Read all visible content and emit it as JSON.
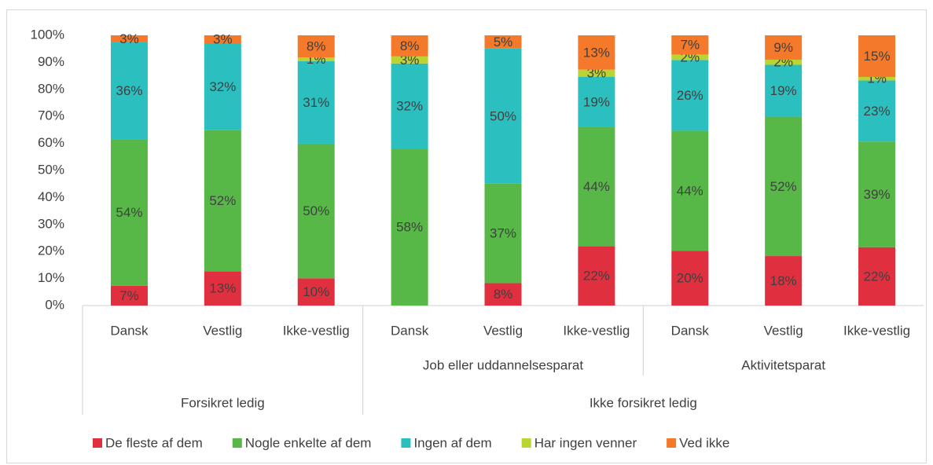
{
  "chart_data": {
    "type": "stacked_bar",
    "categories": [
      "Dansk",
      "Vestlig",
      "Ikke-vestlig",
      "Dansk",
      "Vestlig",
      "Ikke-vestlig",
      "Dansk",
      "Vestlig",
      "Ikke-vestlig"
    ],
    "subgroups": [
      null,
      "Job eller uddannelsesparat",
      "Aktivitetsparat"
    ],
    "groups": [
      "Forsikret ledig",
      "Ikke forsikret ledig"
    ],
    "series": [
      {
        "name": "De fleste af dem",
        "color": "#e0303f",
        "values": [
          7.3,
          12.7,
          10.1,
          0,
          8.3,
          22,
          20.3,
          18.3,
          21.6
        ],
        "value_labels": [
          "7%",
          "13%",
          "10%",
          null,
          "8%",
          "22%",
          "20%",
          "18%",
          "22%"
        ]
      },
      {
        "name": "Nogle enkelte af dem",
        "color": "#57b847",
        "values": [
          54.2,
          52.2,
          49.8,
          58,
          36.8,
          44,
          44.4,
          51.6,
          39.1
        ],
        "value_labels": [
          "54%",
          "52%",
          "50%",
          "58%",
          "37%",
          "44%",
          "44%",
          "52%",
          "39%"
        ]
      },
      {
        "name": "Ingen af dem",
        "color": "#2bbfbf",
        "values": [
          35.9,
          32.2,
          30.6,
          31.6,
          50,
          18.7,
          26.2,
          19.2,
          22.6
        ],
        "value_labels": [
          "36%",
          "32%",
          "31%",
          "32%",
          "50%",
          "19%",
          "26%",
          "19%",
          "23%"
        ]
      },
      {
        "name": "Har ingen venner",
        "color": "#bcd432",
        "values": [
          0,
          0,
          1.3,
          2.6,
          0,
          2.6,
          2.0,
          1.9,
          1.3
        ],
        "value_labels": [
          null,
          null,
          "1%",
          "3%",
          null,
          "3%",
          "2%",
          "2%",
          "1%"
        ]
      },
      {
        "name": "Ved ikke",
        "color": "#f4792a",
        "values": [
          2.6,
          2.9,
          8.2,
          7.8,
          4.9,
          12.7,
          7.1,
          9.0,
          15.4
        ],
        "value_labels": [
          "3%",
          "3%",
          "8%",
          "8%",
          "5%",
          "13%",
          "7%",
          "9%",
          "15%"
        ]
      }
    ],
    "ylim": [
      0,
      100
    ],
    "yticks": [
      {
        "value": 0,
        "label": "0%"
      },
      {
        "value": 10,
        "label": "10%"
      },
      {
        "value": 20,
        "label": "20%"
      },
      {
        "value": 30,
        "label": "30%"
      },
      {
        "value": 40,
        "label": "40%"
      },
      {
        "value": 50,
        "label": "50%"
      },
      {
        "value": 60,
        "label": "60%"
      },
      {
        "value": 70,
        "label": "70%"
      },
      {
        "value": 80,
        "label": "80%"
      },
      {
        "value": 90,
        "label": "90%"
      },
      {
        "value": 100,
        "label": "100%"
      }
    ],
    "grid": false,
    "legend": "bottom"
  }
}
